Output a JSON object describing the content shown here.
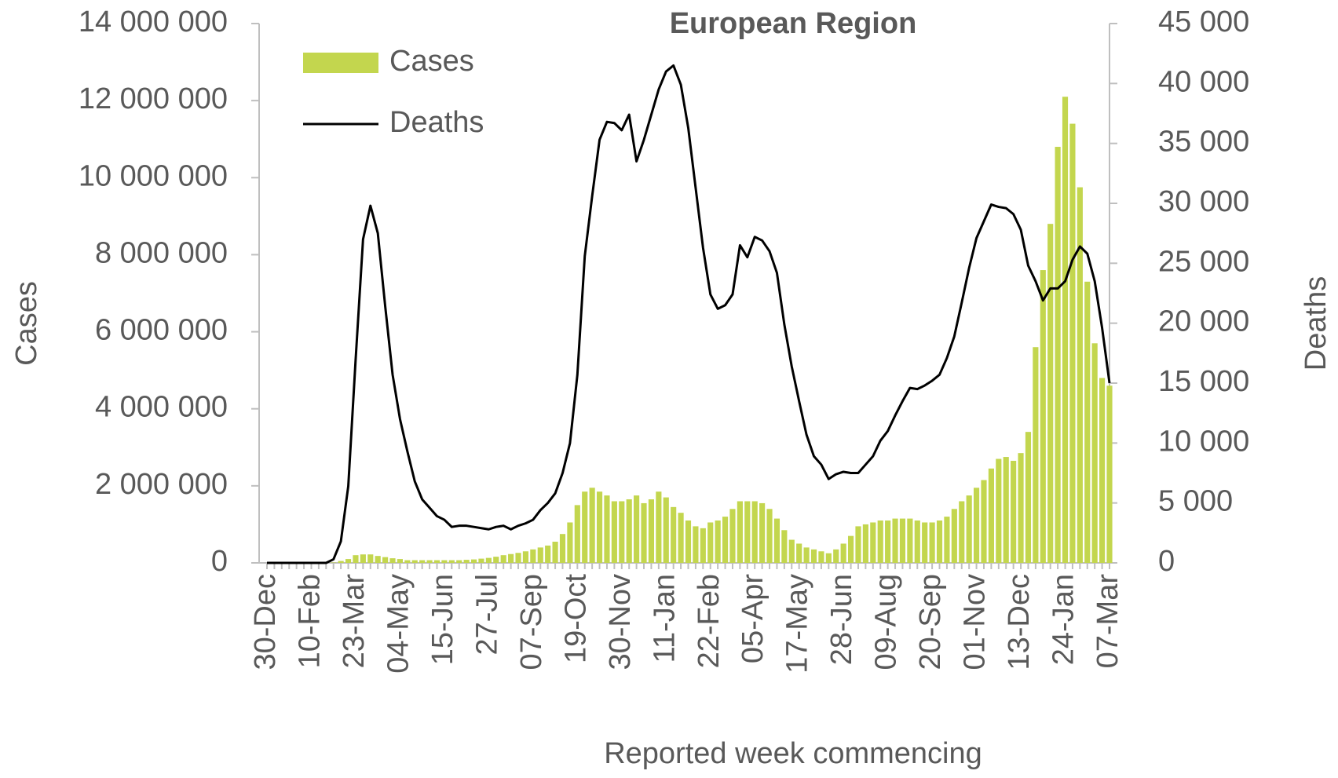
{
  "chart_data": {
    "type": "bar-line",
    "title": "European Region",
    "x_label": "Reported week commencing",
    "y_label": "Cases",
    "y2_label": "Deaths",
    "legend": "upper-left",
    "categories": [
      "30-Dec",
      null,
      null,
      null,
      null,
      null,
      "10-Feb",
      null,
      null,
      null,
      null,
      null,
      "23-Mar",
      null,
      null,
      null,
      null,
      null,
      "04-May",
      null,
      null,
      null,
      null,
      null,
      "15-Jun",
      null,
      null,
      null,
      null,
      null,
      "27-Jul",
      null,
      null,
      null,
      null,
      null,
      "07-Sep",
      null,
      null,
      null,
      null,
      null,
      "19-Oct",
      null,
      null,
      null,
      null,
      null,
      "30-Nov",
      null,
      null,
      null,
      null,
      null,
      "11-Jan",
      null,
      null,
      null,
      null,
      null,
      "22-Feb",
      null,
      null,
      null,
      null,
      null,
      "05-Apr",
      null,
      null,
      null,
      null,
      null,
      "17-May",
      null,
      null,
      null,
      null,
      null,
      "28-Jun",
      null,
      null,
      null,
      null,
      null,
      "09-Aug",
      null,
      null,
      null,
      null,
      null,
      "20-Sep",
      null,
      null,
      null,
      null,
      null,
      "01-Nov",
      null,
      null,
      null,
      null,
      null,
      "13-Dec",
      null,
      null,
      null,
      null,
      null,
      "24-Jan",
      null,
      null,
      null,
      null,
      null,
      "07-Mar"
    ],
    "series": [
      {
        "name": "Cases",
        "type": "bar",
        "color": "#c3d64e",
        "values": [
          0,
          0,
          0,
          0,
          0,
          0,
          0,
          0,
          0,
          10000,
          50000,
          100000,
          200000,
          220000,
          220000,
          180000,
          150000,
          120000,
          100000,
          70000,
          70000,
          70000,
          70000,
          70000,
          70000,
          70000,
          70000,
          80000,
          90000,
          110000,
          130000,
          160000,
          200000,
          230000,
          260000,
          300000,
          350000,
          400000,
          450000,
          550000,
          750000,
          1050000,
          1500000,
          1850000,
          1950000,
          1850000,
          1750000,
          1600000,
          1600000,
          1650000,
          1750000,
          1550000,
          1650000,
          1850000,
          1700000,
          1450000,
          1300000,
          1100000,
          950000,
          900000,
          1050000,
          1100000,
          1200000,
          1400000,
          1600000,
          1600000,
          1600000,
          1550000,
          1400000,
          1150000,
          850000,
          600000,
          500000,
          400000,
          350000,
          300000,
          250000,
          350000,
          500000,
          700000,
          950000,
          1000000,
          1050000,
          1100000,
          1100000,
          1150000,
          1150000,
          1150000,
          1100000,
          1050000,
          1050000,
          1100000,
          1200000,
          1400000,
          1600000,
          1750000,
          1950000,
          2150000,
          2450000,
          2700000,
          2750000,
          2650000,
          2850000,
          3400000,
          5600000,
          7600000,
          8800000,
          10800000,
          12100000,
          11400000,
          9750000,
          7300000,
          5700000,
          4800000,
          4600000
        ]
      },
      {
        "name": "Deaths",
        "type": "line",
        "axis": "y2",
        "color": "#000000",
        "values": [
          0,
          0,
          0,
          0,
          0,
          0,
          0,
          0,
          0,
          300,
          1800,
          6400,
          17000,
          27000,
          29800,
          27500,
          21400,
          15700,
          12000,
          9300,
          6800,
          5300,
          4600,
          3900,
          3600,
          3000,
          3100,
          3100,
          3000,
          2900,
          2800,
          3000,
          3100,
          2800,
          3100,
          3300,
          3600,
          4400,
          5000,
          5800,
          7500,
          10000,
          15700,
          25600,
          30600,
          35300,
          36800,
          36700,
          36100,
          37400,
          33500,
          35300,
          37400,
          39500,
          41000,
          41500,
          39900,
          36300,
          31300,
          26300,
          22400,
          21200,
          21500,
          22400,
          26500,
          25500,
          27200,
          26900,
          26000,
          24200,
          19900,
          16400,
          13500,
          10700,
          8900,
          8200,
          7000,
          7400,
          7600,
          7500,
          7500,
          8200,
          8900,
          10200,
          11000,
          12300,
          13500,
          14600,
          14500,
          14800,
          15200,
          15700,
          17100,
          18900,
          21700,
          24600,
          27100,
          28500,
          29900,
          29700,
          29600,
          29100,
          27800,
          24800,
          23500,
          21900,
          22900,
          22900,
          23500,
          25300,
          26400,
          25800,
          23500,
          19600,
          15000
        ]
      }
    ],
    "ylim": [
      0,
      14000000
    ],
    "yticks": [
      0,
      {
        "value": 2000000,
        "label": "2 000 000"
      },
      {
        "value": 4000000,
        "label": "4 000 000"
      },
      {
        "value": 6000000,
        "label": "6 000 000"
      },
      {
        "value": 8000000,
        "label": "8 000 000"
      },
      {
        "value": 10000000,
        "label": "10 000 000"
      },
      {
        "value": 12000000,
        "label": "12 000 000"
      },
      {
        "value": 14000000,
        "label": "14 000 000"
      }
    ],
    "y2lim": [
      0,
      45000
    ],
    "y2ticks": [
      0,
      {
        "value": 5000,
        "label": "5 000"
      },
      {
        "value": 10000,
        "label": "10 000"
      },
      {
        "value": 15000,
        "label": "15 000"
      },
      {
        "value": 20000,
        "label": "20 000"
      },
      {
        "value": 25000,
        "label": "25 000"
      },
      {
        "value": 30000,
        "label": "30 000"
      },
      {
        "value": 35000,
        "label": "35 000"
      },
      {
        "value": 40000,
        "label": "40 000"
      },
      {
        "value": 45000,
        "label": "45 000"
      }
    ]
  }
}
